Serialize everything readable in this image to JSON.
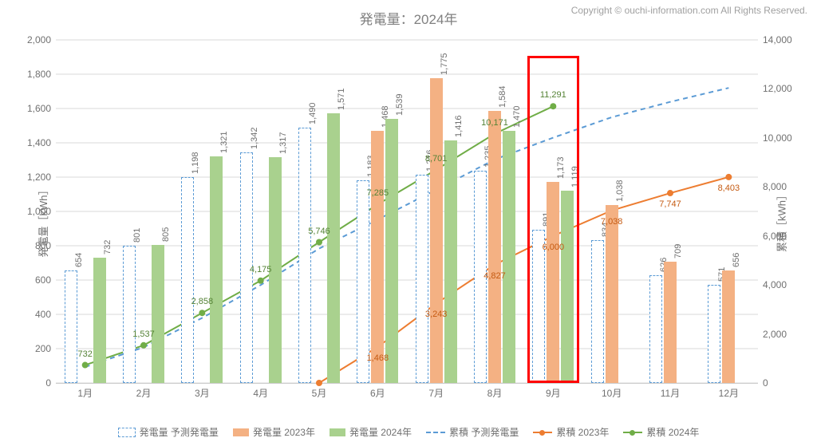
{
  "title": "発電量：2024年",
  "copyright": "Copyright © ouchi-information.com All Rights Reserved.",
  "y_left": {
    "label": "発電量［kWh］",
    "min": 0,
    "max": 2000,
    "step": 200
  },
  "y_right": {
    "label": "累積［kWh］",
    "min": 0,
    "max": 14000,
    "step": 2000
  },
  "months": [
    "1月",
    "2月",
    "3月",
    "4月",
    "5月",
    "6月",
    "7月",
    "8月",
    "9月",
    "10月",
    "11月",
    "12月"
  ],
  "bars_pred": [
    654,
    801,
    1198,
    1342,
    1490,
    1183,
    1216,
    1235,
    891,
    834,
    626,
    571
  ],
  "bars_2023": [
    null,
    null,
    null,
    null,
    null,
    1468,
    1775,
    1584,
    1173,
    1038,
    709,
    656
  ],
  "bars_2024": [
    732,
    805,
    1321,
    1317,
    1571,
    1539,
    1416,
    1470,
    1119,
    null,
    null,
    null
  ],
  "line_pred_cum": [
    654,
    1455,
    2653,
    3995,
    5485,
    6668,
    7884,
    9119,
    10010,
    10844,
    11470,
    12041
  ],
  "line_2023_cum": [
    null,
    null,
    null,
    null,
    0,
    1468,
    3243,
    4827,
    6000,
    7038,
    7747,
    8403
  ],
  "line_2024_cum": [
    732,
    1537,
    2858,
    4175,
    5746,
    7285,
    8701,
    10171,
    11291,
    null,
    null,
    null
  ],
  "line_2024_labels": [
    "732",
    "1,537",
    "2,858",
    "4,175",
    "5,746",
    "7,285",
    "8,701",
    "10,171",
    "11,291"
  ],
  "line_2023_labels": [
    null,
    null,
    null,
    null,
    null,
    "1,468",
    "3,243",
    "4,827",
    "6,000",
    "7,038",
    "7,747",
    "8,403"
  ],
  "bar_labels_pred": [
    "654",
    "801",
    "1,198",
    "1,342",
    "1,490",
    "1,183",
    "1,216",
    "1,235",
    "891",
    "834",
    "626",
    "571"
  ],
  "bar_labels_2023": [
    null,
    null,
    null,
    null,
    null,
    "1,468",
    "1,775",
    "1,584",
    "1,173",
    "1,038",
    "709",
    "656"
  ],
  "bar_labels_2024": [
    "732",
    "805",
    "1,321",
    "1,317",
    "1,571",
    "1,539",
    "1,416",
    "1,470",
    "1,119",
    null,
    null,
    null
  ],
  "highlight_month": 8,
  "colors": {
    "pred_border": "#5b9bd5",
    "bar2023": "#f4b183",
    "bar2024": "#a9d18e",
    "line_pred": "#5b9bd5",
    "line_2023": "#ed7d31",
    "line_2024": "#70ad47",
    "highlight": "#ff0000"
  },
  "legend": {
    "pred": "発電量 予測発電量",
    "b2023": "発電量 2023年",
    "b2024": "発電量 2024年",
    "lpred": "累積 予測発電量",
    "l2023": "累積 2023年",
    "l2024": "累積 2024年"
  }
}
